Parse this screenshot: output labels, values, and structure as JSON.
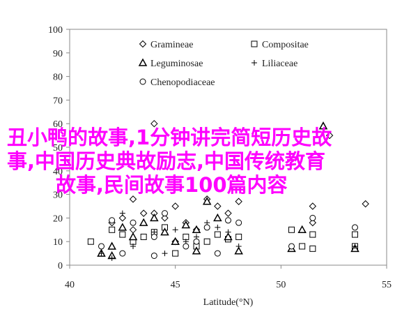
{
  "chart_data": {
    "type": "scatter",
    "x_label": "Latitude(°N)",
    "xlim": [
      40,
      55
    ],
    "xticks": [
      40,
      45,
      50,
      55
    ],
    "ylim": [
      0,
      100
    ],
    "yticks": [
      0,
      10,
      20,
      30,
      40,
      50,
      60,
      70,
      80,
      90,
      100
    ],
    "series": [
      {
        "name": "Gramineae",
        "marker": "diamond",
        "color": "#000000",
        "x": [
          42,
          42.5,
          43,
          43.5,
          44,
          44,
          44.5,
          45,
          45.5,
          46,
          46.5,
          47,
          47.5,
          48,
          51.5,
          51.5,
          52.3,
          54,
          43,
          45
        ],
        "values": [
          18,
          20,
          28,
          22,
          60,
          22,
          20,
          25,
          18,
          15,
          28,
          25,
          22,
          27,
          18,
          25,
          55,
          26,
          15,
          10
        ]
      },
      {
        "name": "Compositae",
        "marker": "square",
        "color": "#000000",
        "x": [
          42,
          42.5,
          43,
          43.5,
          44,
          44.5,
          45,
          45.5,
          46,
          46.5,
          47,
          47.5,
          48,
          50.5,
          51,
          51.5,
          51.5,
          53.5,
          53.5,
          41
        ],
        "values": [
          15,
          13,
          10,
          12,
          14,
          16,
          5,
          12,
          8,
          10,
          13,
          11,
          12,
          15,
          8,
          7,
          13,
          13,
          8,
          10
        ]
      },
      {
        "name": "Leguminosae",
        "marker": "triangle",
        "color": "#000000",
        "x": [
          41.5,
          42,
          42.5,
          43,
          43.5,
          44,
          44.5,
          45,
          45.5,
          46,
          46.5,
          47,
          47.5,
          48,
          50.5,
          51,
          53.5,
          52,
          42,
          46
        ],
        "values": [
          5,
          8,
          16,
          12,
          18,
          20,
          14,
          10,
          17,
          15,
          27,
          20,
          12,
          6,
          7,
          15,
          7,
          59,
          4,
          6
        ]
      },
      {
        "name": "Liliaceae",
        "marker": "plus",
        "color": "#000000",
        "x": [
          41.5,
          42,
          43,
          44,
          44.5,
          45.5,
          46,
          46.5,
          47,
          47.5,
          48,
          53.5,
          42.5,
          45
        ],
        "values": [
          5,
          3,
          8,
          14,
          5,
          10,
          12,
          18,
          16,
          14,
          8,
          8,
          22,
          15
        ]
      },
      {
        "name": "Chenopodiaceae",
        "marker": "circle",
        "color": "#000000",
        "x": [
          41.5,
          42,
          42.5,
          43,
          44,
          44.5,
          45.5,
          46,
          46.5,
          47,
          47.5,
          48,
          50.5,
          51.5,
          53.5,
          44
        ],
        "values": [
          8,
          19,
          5,
          18,
          12,
          22,
          8,
          10,
          16,
          5,
          19,
          18,
          8,
          20,
          16,
          4
        ]
      }
    ],
    "overlay_text": [
      "丑小鸭的故事,1分钟讲完简短历史故",
      "事,中国历史典故励志,中国传统教育",
      "故事,民间故事100篇内容"
    ],
    "overlay_color": "#ff00ff"
  }
}
